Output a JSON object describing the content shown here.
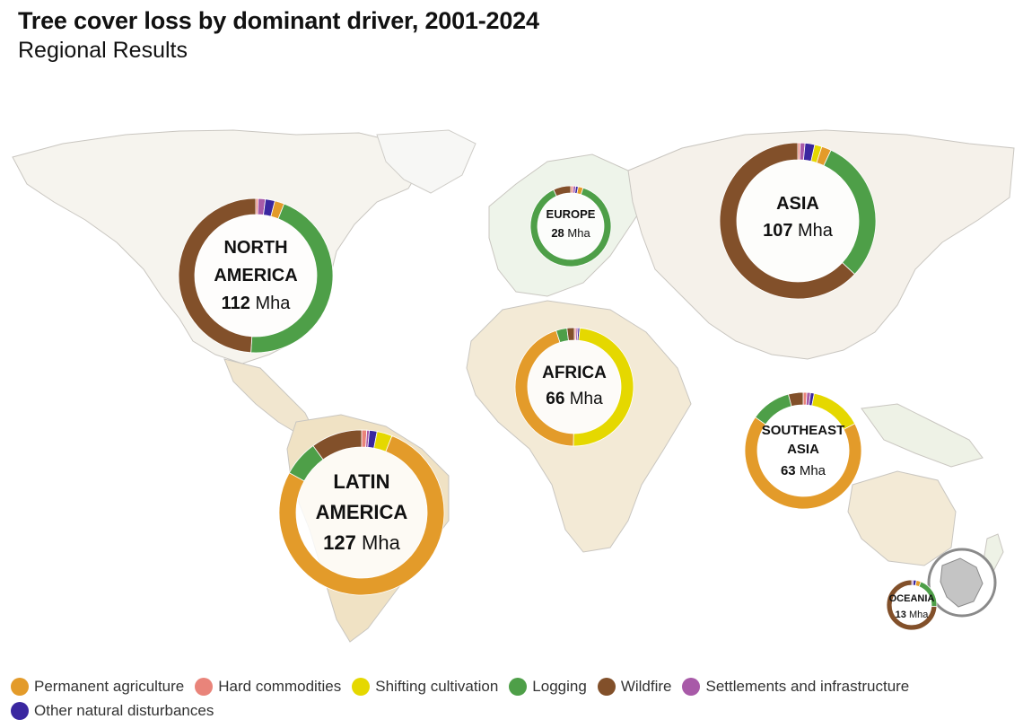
{
  "title": "Tree cover loss by dominant driver, 2001-2024",
  "subtitle": "Regional Results",
  "legend": [
    {
      "name": "Permanent agriculture",
      "color": "#E39B2A"
    },
    {
      "name": "Hard commodities",
      "color": "#E9847A"
    },
    {
      "name": "Shifting cultivation",
      "color": "#E5D800"
    },
    {
      "name": "Logging",
      "color": "#4E9F48"
    },
    {
      "name": "Wildfire",
      "color": "#82502A"
    },
    {
      "name": "Settlements and infrastructure",
      "color": "#A85AA8"
    },
    {
      "name": "Other natural disturbances",
      "color": "#3A27A0"
    }
  ],
  "chart_data": {
    "type": "pie",
    "unit": "Mha",
    "categories": [
      "Permanent agriculture",
      "Hard commodities",
      "Shifting cultivation",
      "Logging",
      "Wildfire",
      "Settlements and infrastructure",
      "Other natural disturbances"
    ],
    "regions": [
      {
        "label_lines": [
          "NORTH",
          "AMERICA"
        ],
        "total": "112",
        "unit": "Mha",
        "shares": [
          2,
          0.5,
          0,
          45,
          49,
          1.5,
          2
        ]
      },
      {
        "label_lines": [
          "LATIN",
          "AMERICA"
        ],
        "total": "127",
        "unit": "Mha",
        "shares": [
          77,
          1,
          3,
          7,
          10,
          0.5,
          1.5
        ]
      },
      {
        "label_lines": [
          "EUROPE"
        ],
        "total": "28",
        "unit": "Mha",
        "shares": [
          2,
          1,
          0,
          88,
          7,
          1,
          1
        ]
      },
      {
        "label_lines": [
          "AFRICA"
        ],
        "total": "66",
        "unit": "Mha",
        "shares": [
          45,
          0.5,
          49,
          3,
          2,
          0.5,
          0.5
        ]
      },
      {
        "label_lines": [
          "ASIA"
        ],
        "total": "107",
        "unit": "Mha",
        "shares": [
          2,
          0.5,
          1.5,
          30,
          63,
          1,
          2
        ]
      },
      {
        "label_lines": [
          "SOUTHEAST",
          "ASIA"
        ],
        "total": "63",
        "unit": "Mha",
        "shares": [
          66,
          1,
          14,
          11,
          4,
          1,
          1
        ]
      },
      {
        "label_lines": [
          "OCEANIA"
        ],
        "total": "13",
        "unit": "Mha",
        "shares": [
          3,
          0,
          0,
          20,
          74,
          1,
          2
        ]
      }
    ]
  }
}
